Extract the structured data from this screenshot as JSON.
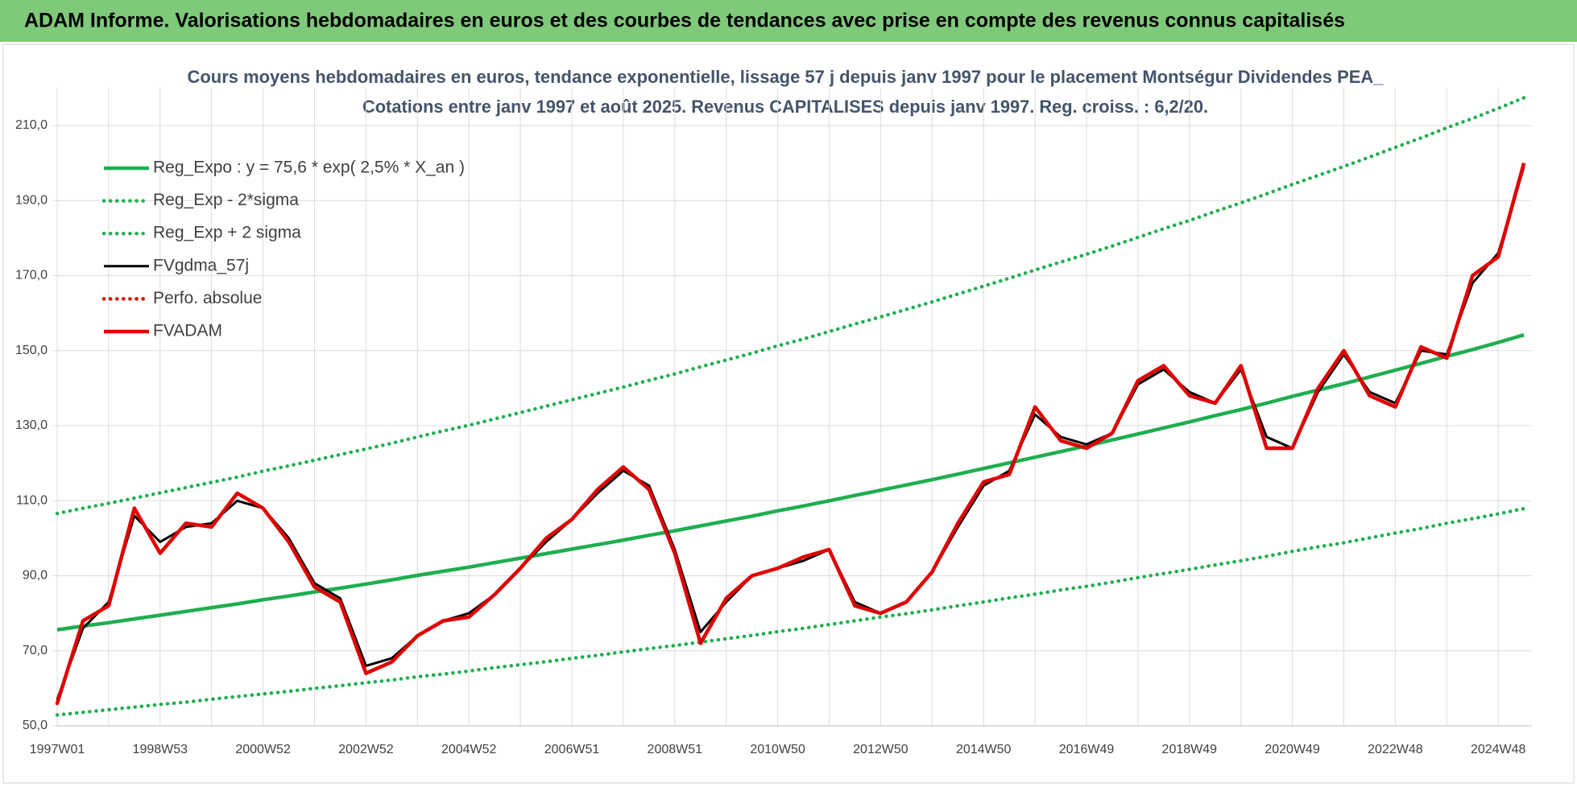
{
  "chart_data": {
    "type": "line",
    "title": "ADAM Informe. Valorisations hebdomadaires en euros et des courbes de tendances avec prise en compte des revenus connus capitalisés",
    "subtitle": [
      "Cours moyens hebdomadaires en euros, tendance exponentielle, lissage 57 j depuis janv 1997 pour le placement Montségur Dividendes PEA_",
      "Cotations entre janv 1997 et août 2025. Revenus CAPITALISES depuis janv 1997. Reg. croiss. : 6,2/20."
    ],
    "categories": [
      "1997W01",
      null,
      null,
      null,
      "1998W53",
      null,
      null,
      null,
      "2000W52",
      null,
      null,
      null,
      "2002W52",
      null,
      null,
      null,
      "2004W52",
      null,
      null,
      null,
      "2006W51",
      null,
      null,
      null,
      "2008W51",
      null,
      null,
      null,
      "2010W50",
      null,
      null,
      null,
      "2012W50",
      null,
      null,
      null,
      "2014W50",
      null,
      null,
      null,
      "2016W49",
      null,
      null,
      null,
      "2018W49",
      null,
      null,
      null,
      "2020W49",
      null,
      null,
      null,
      "2022W48",
      null,
      null,
      null,
      "2024W48",
      null
    ],
    "series": [
      {
        "name": "Reg_Expo : y = 75,6 * exp( 2,5% *  X_an )",
        "color": "#1fae4f",
        "dash": "solid",
        "values": [
          75.6,
          76.6,
          77.5,
          78.5,
          79.5,
          80.5,
          81.5,
          82.5,
          83.6,
          84.6,
          85.7,
          86.7,
          87.8,
          88.9,
          90.1,
          91.2,
          92.3,
          93.5,
          94.7,
          95.9,
          97.1,
          98.3,
          99.5,
          100.8,
          102.0,
          103.3,
          104.6,
          105.9,
          107.3,
          108.6,
          110.0,
          111.4,
          112.8,
          114.2,
          115.6,
          117.1,
          118.6,
          120.1,
          121.6,
          123.1,
          124.6,
          126.2,
          127.8,
          129.4,
          131.0,
          132.7,
          134.3,
          136.0,
          137.8,
          139.5,
          141.2,
          143.0,
          144.8,
          146.6,
          148.5,
          150.3,
          152.2,
          154.2
        ]
      },
      {
        "name": "Reg_Exp - 2*sigma",
        "color": "#1fae4f",
        "dash": "dotted",
        "values": [
          52.9,
          53.6,
          54.3,
          55.0,
          55.7,
          56.3,
          57.1,
          57.8,
          58.5,
          59.2,
          60.0,
          60.7,
          61.5,
          62.2,
          63.1,
          63.8,
          64.6,
          65.5,
          66.3,
          67.1,
          68.0,
          68.8,
          69.7,
          70.6,
          71.4,
          72.3,
          73.2,
          74.1,
          75.1,
          76.0,
          77.0,
          78.0,
          79.0,
          79.9,
          80.9,
          82.0,
          83.0,
          84.1,
          85.1,
          86.2,
          87.2,
          88.3,
          89.5,
          90.6,
          91.7,
          92.9,
          94.0,
          95.2,
          96.5,
          97.7,
          98.8,
          100.1,
          101.4,
          102.6,
          104.0,
          105.2,
          106.5,
          107.9
        ]
      },
      {
        "name": "Reg_Exp + 2 sigma",
        "color": "#1fae4f",
        "dash": "dotted",
        "values": [
          106.6,
          108.0,
          109.3,
          110.7,
          112.1,
          113.5,
          114.9,
          116.3,
          117.9,
          119.3,
          120.8,
          122.3,
          123.8,
          125.3,
          127.0,
          128.6,
          130.1,
          131.8,
          133.5,
          135.2,
          136.9,
          138.6,
          140.3,
          142.1,
          143.8,
          145.7,
          147.5,
          149.3,
          151.3,
          153.1,
          155.1,
          157.1,
          159.0,
          161.0,
          163.0,
          165.1,
          167.2,
          169.3,
          171.5,
          173.6,
          175.7,
          177.9,
          180.2,
          182.5,
          184.7,
          187.1,
          189.4,
          191.8,
          194.3,
          196.7,
          199.1,
          201.6,
          204.2,
          206.7,
          209.4,
          211.9,
          214.6,
          217.4
        ]
      },
      {
        "name": "FVgdma_57j",
        "color": "#000000",
        "dash": "solid",
        "values": [
          57,
          76,
          83,
          106,
          99,
          103,
          104,
          110,
          108,
          100,
          88,
          84,
          66,
          68,
          74,
          78,
          80,
          85,
          92,
          99,
          105,
          112,
          118,
          114,
          97,
          75,
          83,
          90,
          92,
          94,
          97,
          83,
          80,
          83,
          91,
          103,
          114,
          118,
          133,
          127,
          125,
          128,
          141,
          145,
          139,
          136,
          145,
          127,
          124,
          139,
          149,
          139,
          136,
          150,
          149,
          168,
          176,
          199
        ]
      },
      {
        "name": "Perfo. absolue",
        "color": "#e00000",
        "dash": "dotted",
        "values": [
          56,
          78,
          82,
          108,
          96,
          104,
          103,
          112,
          108,
          99,
          87,
          83,
          64,
          67,
          74,
          78,
          79,
          85,
          92,
          100,
          105,
          113,
          119,
          113,
          96,
          72,
          84,
          90,
          92,
          95,
          97,
          82,
          80,
          83,
          91,
          104,
          115,
          117,
          135,
          126,
          124,
          128,
          142,
          146,
          138,
          136,
          146,
          124,
          124,
          140,
          150,
          138,
          135,
          151,
          148,
          170,
          175,
          200
        ]
      },
      {
        "name": "FVADAM",
        "color": "#e00000",
        "dash": "solid",
        "values": [
          56,
          78,
          82,
          108,
          96,
          104,
          103,
          112,
          108,
          99,
          87,
          83,
          64,
          67,
          74,
          78,
          79,
          85,
          92,
          100,
          105,
          113,
          119,
          113,
          96,
          72,
          84,
          90,
          92,
          95,
          97,
          82,
          80,
          83,
          91,
          104,
          115,
          117,
          135,
          126,
          124,
          128,
          142,
          146,
          138,
          136,
          146,
          124,
          124,
          140,
          150,
          138,
          135,
          151,
          148,
          170,
          175,
          200
        ]
      }
    ],
    "ylim": [
      50,
      220
    ],
    "yticks": [
      {
        "value": 50,
        "label": "50,0"
      },
      {
        "value": 70,
        "label": "70,0"
      },
      {
        "value": 90,
        "label": "90,0"
      },
      {
        "value": 110,
        "label": "110,0"
      },
      {
        "value": 130,
        "label": "130,0"
      },
      {
        "value": 150,
        "label": "150,0"
      },
      {
        "value": 170,
        "label": "170,0"
      },
      {
        "value": 190,
        "label": "190,0"
      },
      {
        "value": 210,
        "label": "210,0"
      }
    ],
    "grid": true,
    "legend": "upper left"
  }
}
